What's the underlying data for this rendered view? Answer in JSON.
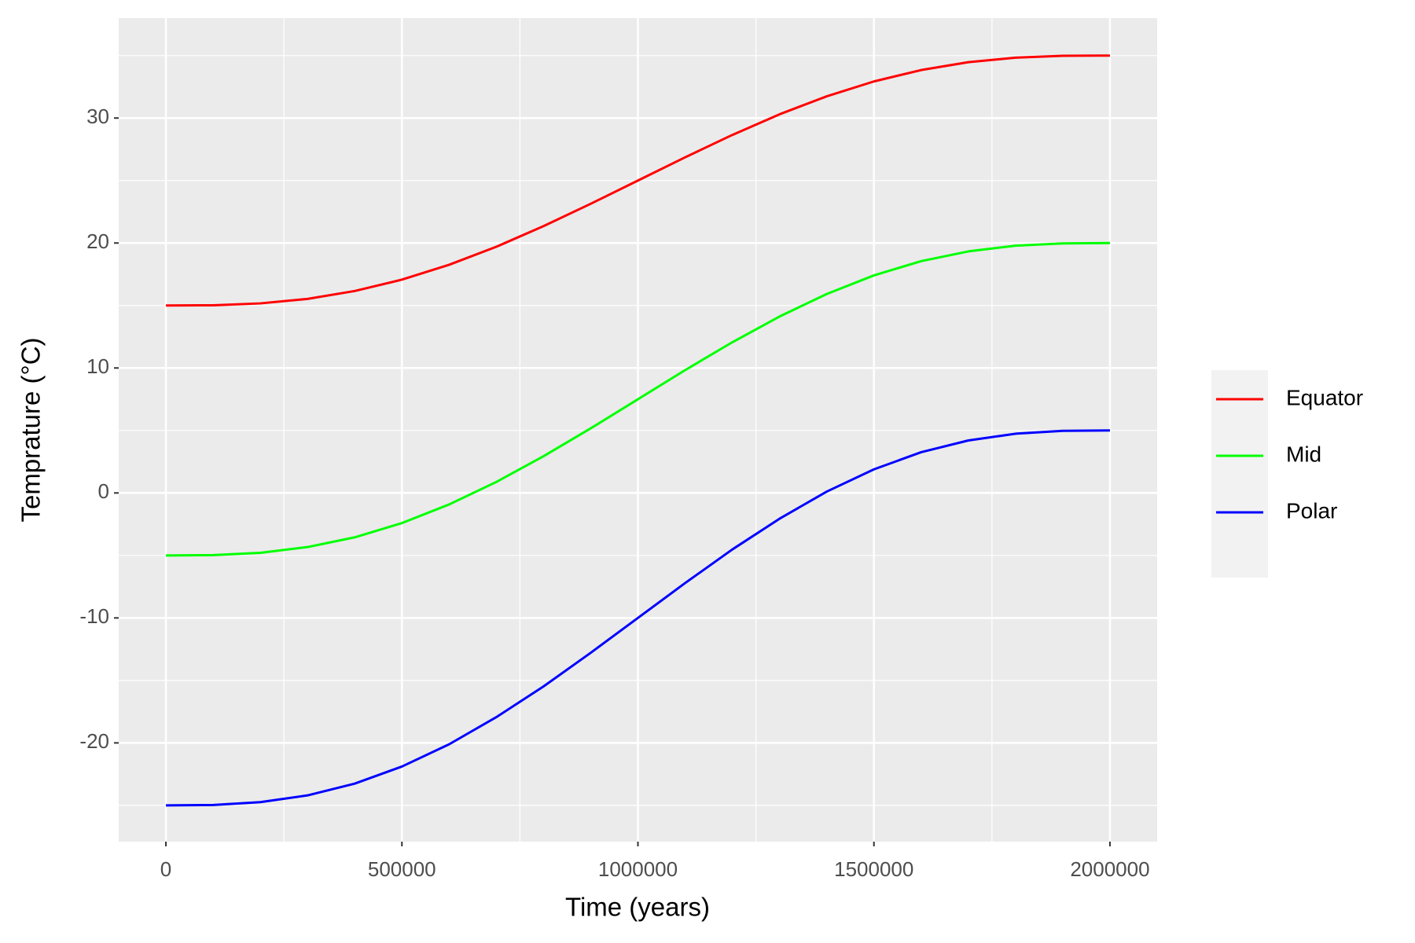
{
  "chart_data": {
    "type": "line",
    "x_label": "Time (years)",
    "y_label": "Temprature (°C)",
    "x": [
      0,
      100000,
      200000,
      300000,
      400000,
      500000,
      600000,
      700000,
      800000,
      900000,
      1000000,
      1100000,
      1200000,
      1300000,
      1400000,
      1500000,
      1600000,
      1700000,
      1800000,
      1900000,
      2000000
    ],
    "series": [
      {
        "name": "Equator",
        "color": "#ff0000",
        "values": [
          15,
          15.02,
          15.17,
          15.53,
          16.16,
          17.07,
          18.26,
          19.7,
          21.35,
          23.14,
          25,
          26.86,
          28.65,
          30.3,
          31.74,
          32.93,
          33.84,
          34.47,
          34.83,
          34.98,
          35
        ]
      },
      {
        "name": "Mid",
        "color": "#00ff00",
        "values": [
          -5,
          -4.97,
          -4.79,
          -4.33,
          -3.55,
          -2.41,
          -0.92,
          0.88,
          2.94,
          5.17,
          7.5,
          9.83,
          12.06,
          14.12,
          15.92,
          17.41,
          18.55,
          19.33,
          19.79,
          19.97,
          20
        ]
      },
      {
        "name": "Polar",
        "color": "#0000ff",
        "values": [
          -25,
          -24.97,
          -24.74,
          -24.2,
          -23.26,
          -21.89,
          -20.11,
          -17.94,
          -15.48,
          -12.79,
          -10,
          -7.21,
          -4.52,
          -2.06,
          0.11,
          1.89,
          3.26,
          4.2,
          4.74,
          4.97,
          5
        ]
      }
    ],
    "xlim": [
      -100000,
      2100000
    ],
    "xticks": [
      0,
      500000,
      1000000,
      1500000,
      2000000
    ],
    "ylim": [
      -27.9,
      38
    ],
    "yticks": [
      -20,
      -10,
      0,
      10,
      20,
      30
    ],
    "grid": true,
    "legend": "right"
  }
}
